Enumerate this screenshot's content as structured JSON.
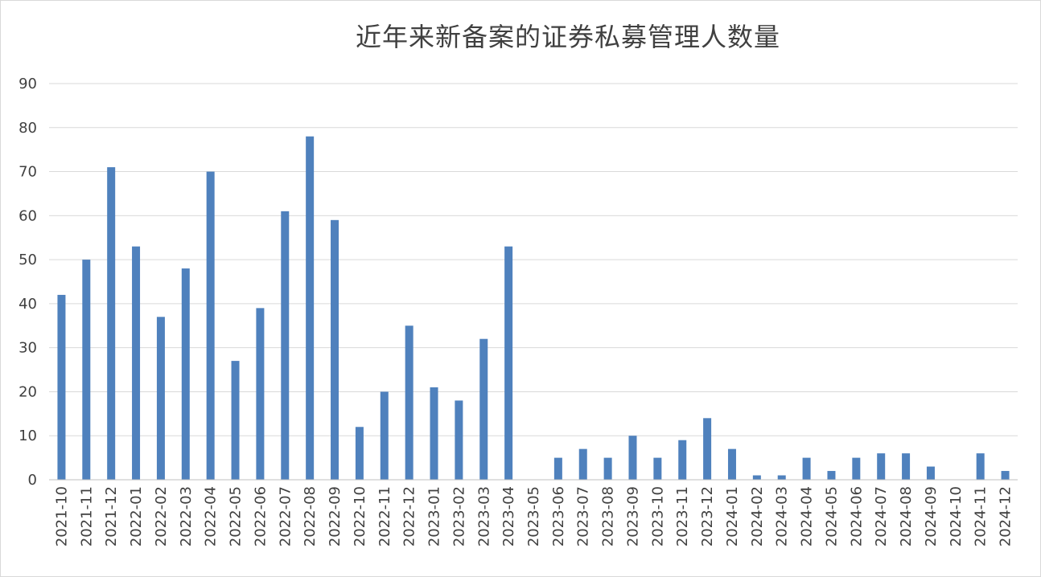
{
  "chart_data": {
    "type": "bar",
    "title": "近年来新备案的证券私募管理人数量",
    "xlabel": "",
    "ylabel": "",
    "ylim": [
      0,
      90
    ],
    "yticks": [
      0,
      10,
      20,
      30,
      40,
      50,
      60,
      70,
      80,
      90
    ],
    "grid": true,
    "legend": "none",
    "bar_color": "#4f81bd",
    "categories": [
      "2021-10",
      "2021-11",
      "2021-12",
      "2022-01",
      "2022-02",
      "2022-03",
      "2022-04",
      "2022-05",
      "2022-06",
      "2022-07",
      "2022-08",
      "2022-09",
      "2022-10",
      "2022-11",
      "2022-12",
      "2023-01",
      "2023-02",
      "2023-03",
      "2023-04",
      "2023-05",
      "2023-06",
      "2023-07",
      "2023-08",
      "2023-09",
      "2023-10",
      "2023-11",
      "2023-12",
      "2024-01",
      "2024-02",
      "2024-03",
      "2024-04",
      "2024-05",
      "2024-06",
      "2024-07",
      "2024-08",
      "2024-09",
      "2024-10",
      "2024-11",
      "2024-12"
    ],
    "values": [
      42,
      50,
      71,
      53,
      37,
      48,
      70,
      27,
      39,
      61,
      78,
      59,
      12,
      20,
      35,
      21,
      18,
      32,
      53,
      0,
      5,
      7,
      5,
      10,
      5,
      9,
      14,
      7,
      1,
      1,
      5,
      2,
      5,
      6,
      6,
      3,
      0,
      6,
      2
    ]
  }
}
